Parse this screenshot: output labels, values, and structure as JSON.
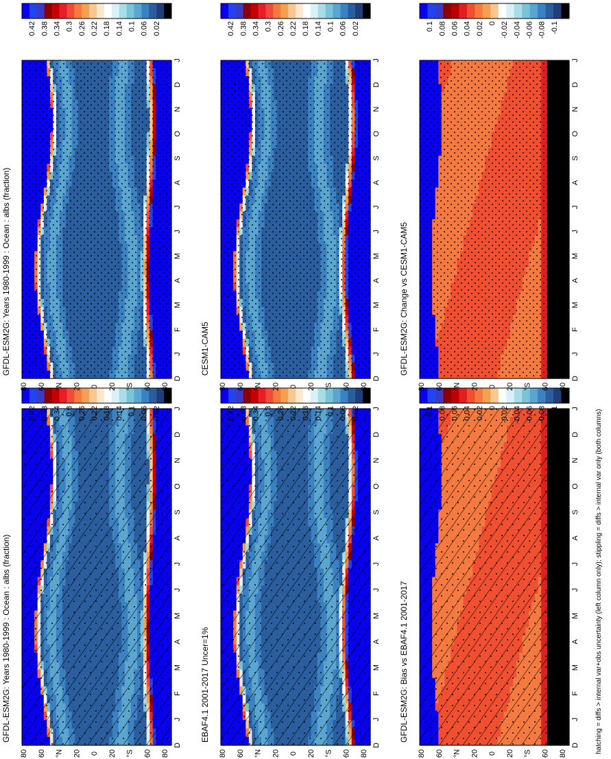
{
  "figure": {
    "footnote": "hatching = diffs > internal var+obs uncertainty (left column only); stippling = diffs > internal var only (both columns)",
    "rotation": "page rotated 90° clockwise (landscape figure shown in portrait)"
  },
  "colors": {
    "abs_palette": [
      "#0a00f0",
      "#2244ee",
      "#3a3ac8",
      "#8a0000",
      "#c40000",
      "#e61e28",
      "#f04a3a",
      "#f47a40",
      "#f5a050",
      "#f8c890",
      "#fde8cc",
      "#ffffff",
      "#d8f0f6",
      "#a8dce6",
      "#7ac4d8",
      "#5aa6d0",
      "#3b82c2",
      "#2a5e9e",
      "#1e3f7a",
      "#000000"
    ],
    "diff_palette": [
      "#0a00f0",
      "#2244ee",
      "#3a3ac8",
      "#8a0000",
      "#b80000",
      "#e02020",
      "#f05030",
      "#f47a40",
      "#f5a050",
      "#f8c890",
      "#ffffff",
      "#d8f0f6",
      "#a8dce6",
      "#7ac4d8",
      "#5aa6d0",
      "#3b82c2",
      "#2a5e9e",
      "#1e3f7a",
      "#000000"
    ],
    "hatch": "#000000"
  },
  "chart_data": [
    {
      "type": "heatmap",
      "title": "GFDL-ESM2G: Years 1980-1999 : Ocean : albs (fraction)",
      "x": [
        "J",
        "F",
        "M",
        "A",
        "M",
        "J",
        "J",
        "A",
        "S",
        "O",
        "N",
        "D",
        "J"
      ],
      "x_start_label": "D",
      "ylabel_ticks": [
        "80",
        "60",
        "°N",
        "20",
        "0",
        "20",
        "°S",
        "60",
        "80"
      ],
      "colorbar": {
        "ticks": [
          "0.42",
          "0.38",
          "0.34",
          "0.3",
          "0.26",
          "0.22",
          "0.18",
          "0.14",
          "0.1",
          "0.06",
          "0.02"
        ],
        "range": [
          0,
          0.44
        ]
      },
      "overlay": "hatching + stippling",
      "polar_north_high_lat": 70,
      "polar_south_high_lat": 72,
      "midlat_level": 0.06
    },
    {
      "type": "heatmap",
      "title": "EBAF4.1 2001-2017 Uncer=1%",
      "x": [
        "J",
        "F",
        "M",
        "A",
        "M",
        "J",
        "J",
        "A",
        "S",
        "O",
        "N",
        "D",
        "J"
      ],
      "x_start_label": "D",
      "ylabel_ticks": [
        "80",
        "60",
        "°N",
        "20",
        "0",
        "20",
        "°S",
        "60",
        "80"
      ],
      "colorbar": {
        "ticks": [
          "0.42",
          "0.38",
          "0.34",
          "0.3",
          "0.26",
          "0.22",
          "0.18",
          "0.14",
          "0.1",
          "0.06",
          "0.02"
        ],
        "range": [
          0,
          0.44
        ]
      },
      "overlay": "hatching + stippling"
    },
    {
      "type": "heatmap",
      "title": "GFDL-ESM2G: Bias vs EBAF4.1 2001-2017",
      "x": [
        "J",
        "F",
        "M",
        "A",
        "M",
        "J",
        "J",
        "A",
        "S",
        "O",
        "N",
        "D",
        "J"
      ],
      "x_start_label": "D",
      "ylabel_ticks": [
        "80",
        "60",
        "°N",
        "20",
        "0",
        "20",
        "°S",
        "60",
        "80"
      ],
      "colorbar": {
        "ticks": [
          "0.1",
          "0.08",
          "0.06",
          "0.04",
          "0.02",
          "0",
          "-0.02",
          "-0.04",
          "-0.06",
          "-0.08",
          "-0.1"
        ],
        "range": [
          -0.11,
          0.11
        ]
      },
      "overlay": "hatching + stippling"
    },
    {
      "type": "heatmap",
      "title": "GFDL-ESM2G: Years 1980-1999 : Ocean : albs (fraction)",
      "x": [
        "J",
        "F",
        "M",
        "A",
        "M",
        "J",
        "J",
        "A",
        "S",
        "O",
        "N",
        "D",
        "J"
      ],
      "x_start_label": "D",
      "ylabel_ticks": [
        "80",
        "60",
        "°N",
        "20",
        "0",
        "20",
        "°S",
        "60",
        "80"
      ],
      "colorbar": {
        "ticks": [
          "0.42",
          "0.38",
          "0.34",
          "0.3",
          "0.26",
          "0.22",
          "0.18",
          "0.14",
          "0.1",
          "0.06",
          "0.02"
        ],
        "range": [
          0,
          0.44
        ]
      },
      "overlay": "stippling"
    },
    {
      "type": "heatmap",
      "title": "CESM1-CAM5",
      "x": [
        "J",
        "F",
        "M",
        "A",
        "M",
        "J",
        "J",
        "A",
        "S",
        "O",
        "N",
        "D",
        "J"
      ],
      "x_start_label": "D",
      "ylabel_ticks": [
        "80",
        "60",
        "°N",
        "20",
        "0",
        "20",
        "°S",
        "60",
        "80"
      ],
      "colorbar": {
        "ticks": [
          "0.42",
          "0.38",
          "0.34",
          "0.3",
          "0.26",
          "0.22",
          "0.18",
          "0.14",
          "0.1",
          "0.06",
          "0.02"
        ],
        "range": [
          0,
          0.44
        ]
      },
      "overlay": "stippling"
    },
    {
      "type": "heatmap",
      "title": "GFDL-ESM2G: Change vs CESM1-CAM5",
      "x": [
        "J",
        "F",
        "M",
        "A",
        "M",
        "J",
        "J",
        "A",
        "S",
        "O",
        "N",
        "D",
        "J"
      ],
      "x_start_label": "D",
      "ylabel_ticks": [
        "80",
        "60",
        "°N",
        "20",
        "0",
        "20",
        "°S",
        "60",
        "80"
      ],
      "colorbar": {
        "ticks": [
          "0.1",
          "0.08",
          "0.06",
          "0.04",
          "0.02",
          "0",
          "-0.02",
          "-0.04",
          "-0.06",
          "-0.08",
          "-0.1"
        ],
        "range": [
          -0.11,
          0.11
        ]
      },
      "overlay": "stippling"
    }
  ]
}
